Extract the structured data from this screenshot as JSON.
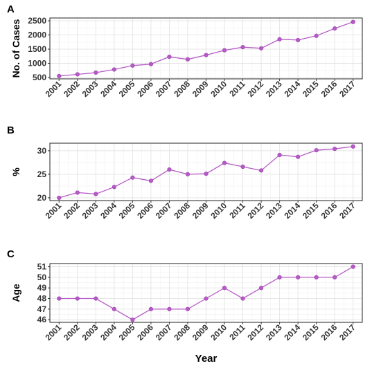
{
  "chart_data": [
    {
      "type": "line",
      "panel": "A",
      "ylabel": "No. of Cases",
      "xlabel": "",
      "x": [
        "2001",
        "2002",
        "2003",
        "2004",
        "2005",
        "2006",
        "2007",
        "2008",
        "2009",
        "2010",
        "2011",
        "2012",
        "2013",
        "2014",
        "2015",
        "2016",
        "2017"
      ],
      "values": [
        550,
        610,
        670,
        780,
        920,
        970,
        1230,
        1140,
        1290,
        1460,
        1570,
        1530,
        1850,
        1820,
        1970,
        2230,
        2460
      ],
      "ylim": [
        450,
        2600
      ],
      "yticks": [
        500,
        1000,
        1500,
        2000,
        2500
      ],
      "grid": true,
      "color": "#b65bc6"
    },
    {
      "type": "line",
      "panel": "B",
      "ylabel": "%",
      "xlabel": "",
      "x": [
        "2001",
        "2002",
        "2003",
        "2004",
        "2005",
        "2006",
        "2007",
        "2008",
        "2009",
        "2010",
        "2011",
        "2012",
        "2013",
        "2014",
        "2015",
        "2016",
        "2017"
      ],
      "values": [
        20.0,
        21.1,
        20.8,
        22.3,
        24.3,
        23.6,
        26.0,
        25.0,
        25.1,
        27.4,
        26.6,
        25.8,
        29.1,
        28.7,
        30.1,
        30.4,
        30.9
      ],
      "ylim": [
        19.4,
        31.6
      ],
      "yticks": [
        20,
        25,
        30
      ],
      "grid": true,
      "color": "#b65bc6"
    },
    {
      "type": "line",
      "panel": "C",
      "ylabel": "Age",
      "xlabel": "Year",
      "x": [
        "2001",
        "2002",
        "2003",
        "2004",
        "2005",
        "2006",
        "2007",
        "2008",
        "2009",
        "2010",
        "2011",
        "2012",
        "2013",
        "2014",
        "2015",
        "2016",
        "2017"
      ],
      "values": [
        48,
        48,
        48,
        47,
        46,
        47,
        47,
        47,
        48,
        49,
        48,
        49,
        50,
        50,
        50,
        50,
        51
      ],
      "ylim": [
        45.75,
        51.3
      ],
      "yticks": [
        46,
        47,
        48,
        49,
        50,
        51
      ],
      "grid": true,
      "color": "#b65bc6"
    }
  ]
}
